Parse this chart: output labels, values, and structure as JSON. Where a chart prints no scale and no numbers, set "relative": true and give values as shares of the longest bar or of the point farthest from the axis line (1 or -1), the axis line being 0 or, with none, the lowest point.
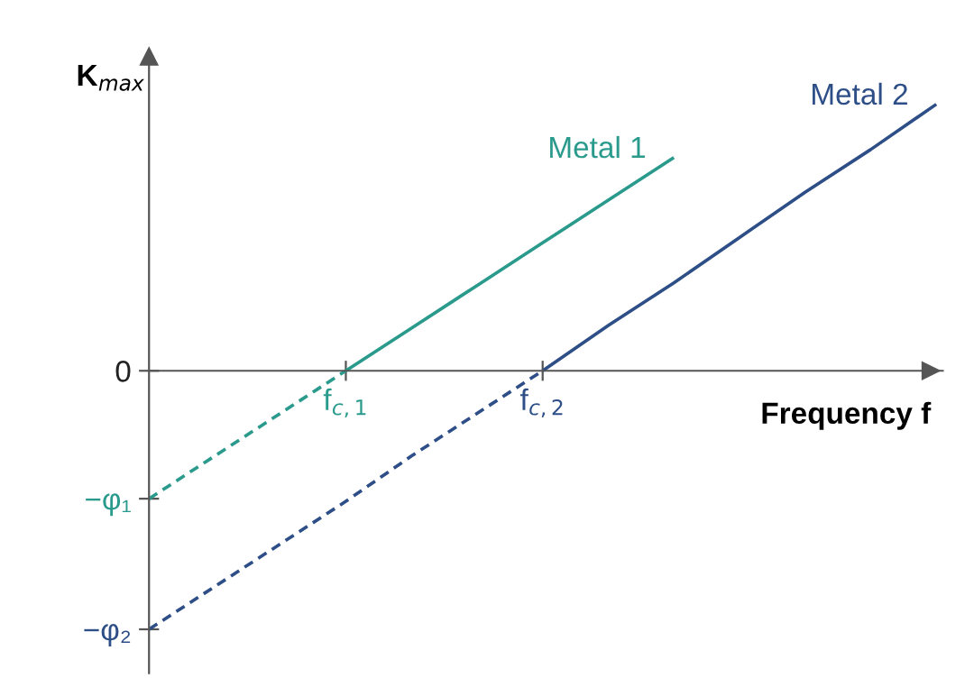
{
  "chart_data": {
    "type": "line",
    "relative": true,
    "xlabel": "Frequency f",
    "ylabel": "K$_{max}$",
    "categories": [
      null,
      null,
      null,
      "f$_{c,1}$",
      null,
      null,
      "f$_{c,2}$",
      null,
      null,
      null,
      null,
      null,
      null
    ],
    "series": [
      {
        "name": "Metal 1",
        "color": "#2a9a8c",
        "line_style": "solid",
        "values": [
          null,
          null,
          null,
          0,
          0.16,
          0.32,
          0.48,
          0.64,
          0.8,
          null,
          null,
          null,
          null
        ]
      },
      {
        "color": "#2a9a8c",
        "line_style": "dashed",
        "values": [
          -0.48,
          -0.32,
          -0.16,
          0,
          null,
          null,
          null,
          null,
          null,
          null,
          null,
          null,
          null
        ]
      },
      {
        "name": "Metal 2",
        "color": "#2d4e86",
        "line_style": "solid",
        "values": [
          null,
          null,
          null,
          null,
          null,
          null,
          0,
          0.17,
          0.33,
          0.5,
          0.67,
          0.83,
          1
        ]
      },
      {
        "color": "#2d4e86",
        "line_style": "dashed",
        "values": [
          -0.97,
          -0.81,
          -0.65,
          -0.49,
          -0.32,
          -0.16,
          0,
          null,
          null,
          null,
          null,
          null,
          null
        ]
      }
    ],
    "annotations": [
      "0",
      "−φ₁",
      "−φ₂"
    ],
    "grid": false,
    "legend": false
  }
}
